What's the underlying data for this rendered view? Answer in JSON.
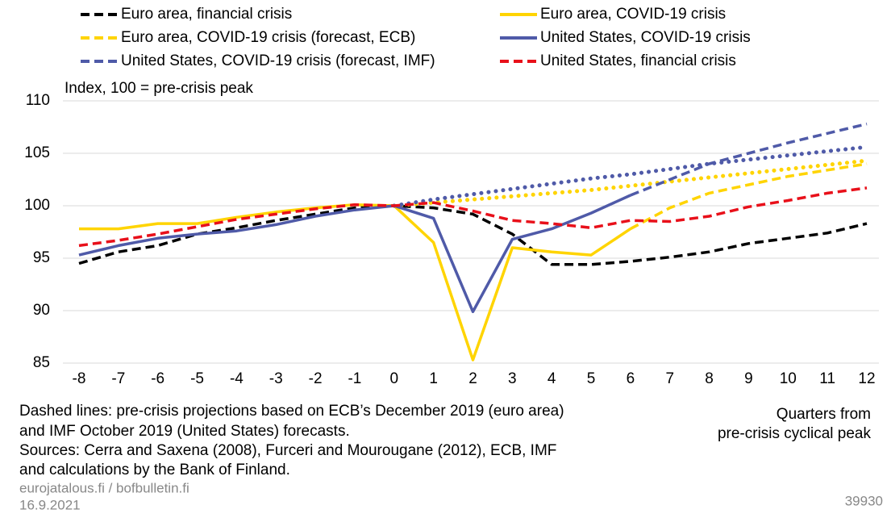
{
  "chart_data": {
    "type": "line",
    "y_axis_label": "Index, 100 = pre-crisis peak",
    "x_axis_label": [
      "Quarters from",
      "pre-crisis cyclical peak"
    ],
    "x": [
      -8,
      -7,
      -6,
      -5,
      -4,
      -3,
      -2,
      -1,
      0,
      1,
      2,
      3,
      4,
      5,
      6,
      7,
      8,
      9,
      10,
      11,
      12
    ],
    "xlim": [
      -8,
      12
    ],
    "xticks": [
      -8,
      -7,
      -6,
      -5,
      -4,
      -3,
      -2,
      -1,
      0,
      1,
      2,
      3,
      4,
      5,
      6,
      7,
      8,
      9,
      10,
      11,
      12
    ],
    "ylim": [
      85,
      110
    ],
    "yticks": [
      85,
      90,
      95,
      100,
      105,
      110
    ],
    "grid": true,
    "series": [
      {
        "name": "Euro area, financial crisis",
        "color": "#000000",
        "style": "dashed",
        "values": [
          94.5,
          95.6,
          96.2,
          97.3,
          97.9,
          98.6,
          99.2,
          99.8,
          100,
          99.8,
          99.2,
          97.3,
          94.4,
          94.4,
          94.7,
          95.1,
          95.6,
          96.4,
          96.9,
          97.4,
          98.3
        ]
      },
      {
        "name": "Euro area, COVID-19 crisis",
        "color": "#ffd400",
        "style": "solid",
        "dashed_from_x": 6,
        "values": [
          97.8,
          97.8,
          98.3,
          98.3,
          98.9,
          99.4,
          99.8,
          100.1,
          100,
          96.5,
          85.3,
          96.0,
          95.6,
          95.3,
          97.8,
          99.8,
          101.2,
          102.0,
          102.8,
          103.4,
          104.0
        ]
      },
      {
        "name": "Euro area, COVID-19 crisis (forecast, ECB)",
        "color": "#ffd400",
        "style": "dotted",
        "values": [
          null,
          null,
          null,
          null,
          null,
          null,
          null,
          null,
          100,
          100.3,
          100.6,
          100.9,
          101.2,
          101.5,
          101.9,
          102.3,
          102.7,
          103.1,
          103.5,
          103.9,
          104.3
        ]
      },
      {
        "name": "United States, COVID-19 crisis",
        "color": "#4f5aa8",
        "style": "solid",
        "dashed_from_x": 6,
        "values": [
          95.3,
          96.2,
          96.9,
          97.3,
          97.6,
          98.2,
          99.0,
          99.6,
          100,
          98.8,
          89.9,
          96.8,
          97.8,
          99.3,
          101.0,
          102.5,
          104.0,
          105.0,
          106.0,
          106.9,
          107.8
        ]
      },
      {
        "name": "United States, COVID-19 crisis (forecast, IMF)",
        "color": "#4f5aa8",
        "style": "dotted",
        "values": [
          null,
          null,
          null,
          null,
          null,
          null,
          null,
          null,
          100,
          100.6,
          101.1,
          101.6,
          102.1,
          102.6,
          103.0,
          103.5,
          104.0,
          104.4,
          104.8,
          105.2,
          105.6
        ]
      },
      {
        "name": "United States, financial crisis",
        "color": "#e8101a",
        "style": "dashed",
        "values": [
          96.2,
          96.7,
          97.3,
          98.0,
          98.7,
          99.2,
          99.7,
          100.1,
          100,
          100.3,
          99.5,
          98.6,
          98.3,
          97.9,
          98.6,
          98.5,
          99.0,
          99.9,
          100.5,
          101.2,
          101.7
        ]
      }
    ],
    "notes": [
      "Dashed lines: pre-crisis projections based on ECB’s December 2019 (euro area)",
      "and IMF October 2019 (United States) forecasts.",
      "Sources: Cerra and Saxena (2008), Furceri and Mourougane (2012), ECB, IMF",
      "and calculations by the Bank of Finland."
    ],
    "website": "eurojatalous.fi / bofbulletin.fi",
    "date": "16.9.2021",
    "code": "39930"
  }
}
